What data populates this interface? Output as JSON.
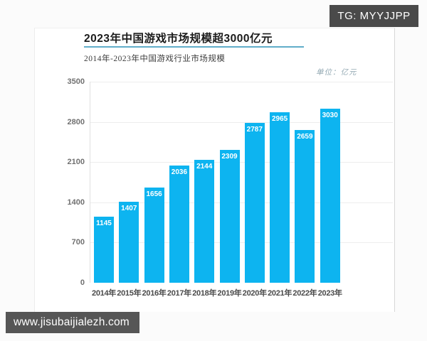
{
  "watermark": {
    "label": "TG: MYYJJPP",
    "bg": "#4a4a4a",
    "fg": "#ffffff"
  },
  "footer": {
    "url": "www.jisubaijialezh.com",
    "bg": "#565656",
    "fg": "#ffffff"
  },
  "chart": {
    "title": "2023年中国游戏市场规模超3000亿元",
    "subtitle": "2014年-2023年中国游戏行业市场规模",
    "unit_label": "单位：亿元"
  },
  "chart_data": {
    "type": "bar",
    "title": "2023年中国游戏市场规模超3000亿元",
    "subtitle": "2014年-2023年中国游戏行业市场规模",
    "unit": "亿元",
    "categories": [
      "2014年",
      "2015年",
      "2016年",
      "2017年",
      "2018年",
      "2019年",
      "2020年",
      "2021年",
      "2022年",
      "2023年"
    ],
    "values": [
      1145,
      1407,
      1656,
      2036,
      2144,
      2309,
      2787,
      2965,
      2659,
      3030
    ],
    "ylim": [
      0,
      3500
    ],
    "y_ticks": [
      0,
      700,
      1400,
      2100,
      2800,
      3500
    ],
    "grid": "horizontal",
    "legend": "none",
    "bar_color": "#0db4f0",
    "value_label_style": "white, inside top of bar"
  }
}
